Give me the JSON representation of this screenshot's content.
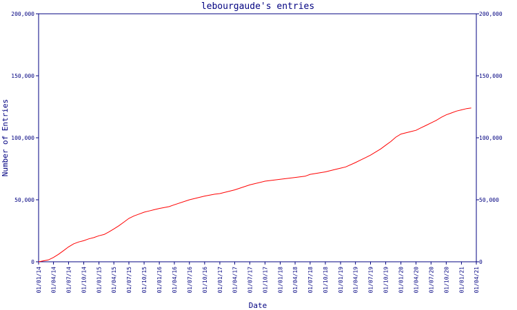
{
  "chart_data": {
    "type": "line",
    "title": "lebourgaude's entries",
    "xlabel": "Date",
    "ylabel": "Number of Entries",
    "ylim": [
      0,
      200000
    ],
    "y_ticks": [
      0,
      50000,
      100000,
      150000,
      200000
    ],
    "y_tick_labels": [
      "0",
      "50,000",
      "100,000",
      "150,000",
      "200,000"
    ],
    "x_tick_labels": [
      "01/01/14",
      "01/04/14",
      "01/07/14",
      "01/10/14",
      "01/01/15",
      "01/04/15",
      "01/07/15",
      "01/10/15",
      "01/01/16",
      "01/04/16",
      "01/07/16",
      "01/10/16",
      "01/01/17",
      "01/04/17",
      "01/07/17",
      "01/10/17",
      "01/01/18",
      "01/04/18",
      "01/07/18",
      "01/10/18",
      "01/01/19",
      "01/04/19",
      "01/07/19",
      "01/10/19",
      "01/01/20",
      "01/04/20",
      "01/07/20",
      "01/10/20",
      "01/01/21",
      "01/04/21"
    ],
    "grid": false,
    "series_color": "#ff0000",
    "axis_color": "#000080",
    "series": [
      {
        "x": [
          "2014-01-01",
          "2014-03-01",
          "2014-04-01",
          "2014-05-01",
          "2014-06-01",
          "2014-07-01",
          "2014-08-01",
          "2014-09-01",
          "2014-10-01",
          "2014-11-01",
          "2014-12-01",
          "2015-01-01",
          "2015-02-01",
          "2015-03-01",
          "2015-04-01",
          "2015-05-01",
          "2015-06-01",
          "2015-07-01",
          "2015-08-01",
          "2015-09-01",
          "2015-10-01",
          "2015-11-01",
          "2015-12-01",
          "2016-01-01",
          "2016-03-01",
          "2016-04-01",
          "2016-07-01",
          "2016-10-01",
          "2016-12-01",
          "2017-01-01",
          "2017-04-01",
          "2017-07-01",
          "2017-10-01",
          "2018-01-01",
          "2018-04-01",
          "2018-06-01",
          "2018-07-01",
          "2018-10-01",
          "2018-12-01",
          "2019-01-01",
          "2019-02-01",
          "2019-04-01",
          "2019-05-01",
          "2019-06-01",
          "2019-07-01",
          "2019-08-01",
          "2019-09-01",
          "2019-10-01",
          "2019-11-01",
          "2019-12-01",
          "2020-01-01",
          "2020-03-01",
          "2020-04-01",
          "2020-05-01",
          "2020-06-01",
          "2020-07-01",
          "2020-08-01",
          "2020-09-01",
          "2020-10-01",
          "2020-11-01",
          "2020-12-01",
          "2021-01-01",
          "2021-02-01",
          "2021-03-01"
        ],
        "values": [
          0,
          1500,
          3500,
          6000,
          9000,
          12000,
          14500,
          16000,
          17000,
          18500,
          19500,
          21000,
          22000,
          24000,
          26500,
          29000,
          32000,
          35000,
          37000,
          38500,
          40000,
          41000,
          42000,
          43000,
          44500,
          46000,
          50000,
          53000,
          54500,
          55000,
          58000,
          62000,
          65000,
          66500,
          68000,
          69000,
          70500,
          72500,
          74500,
          75500,
          76500,
          80000,
          82000,
          84000,
          86000,
          88500,
          91000,
          94000,
          97000,
          100500,
          103000,
          105000,
          106000,
          108000,
          110000,
          112000,
          114000,
          116500,
          118500,
          120000,
          121500,
          122500,
          123500,
          124000
        ]
      }
    ]
  }
}
